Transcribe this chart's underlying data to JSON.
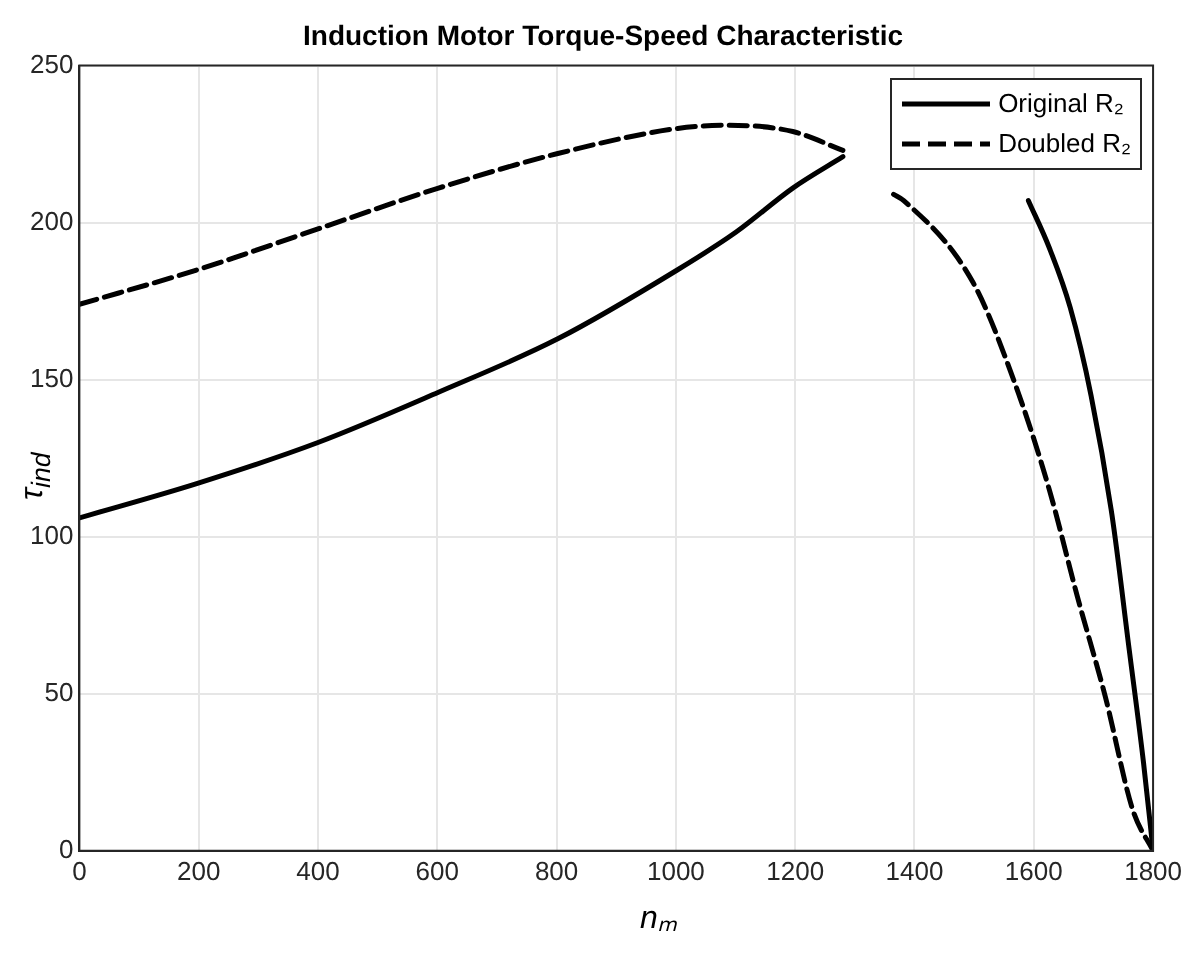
{
  "chart_data": {
    "type": "line",
    "title": "Induction Motor Torque-Speed Characteristic",
    "xlabel": "nₘ",
    "ylabel": "τ$_{ind}$",
    "xlim": [
      0,
      1800
    ],
    "xticks": [
      0,
      200,
      400,
      600,
      800,
      1000,
      1200,
      1400,
      1600,
      1800
    ],
    "ylim": [
      0,
      250
    ],
    "yticks": [
      0,
      50,
      100,
      150,
      200,
      250
    ],
    "grid": true,
    "legend": "top right",
    "marker": "none",
    "series": [
      {
        "name": "Original R₂",
        "color": "#000000",
        "line_style": "solid",
        "x": [
          0,
          198,
          400,
          602,
          802,
          1003,
          1101,
          1196,
          1280,
          1320,
          1591,
          1626,
          1661,
          1696,
          1731,
          1760,
          1784,
          1800
        ],
        "values": [
          106,
          117,
          130,
          146,
          163,
          185,
          197,
          211,
          221,
          null,
          207,
          192,
          173,
          145,
          107,
          64,
          28,
          0
        ]
      },
      {
        "name": "Doubled R₂",
        "color": "#000000",
        "line_style": "dashed",
        "x": [
          0,
          198,
          400,
          602,
          802,
          1003,
          1089,
          1196,
          1280,
          1320,
          1365,
          1382,
          1498,
          1568,
          1626,
          1673,
          1720,
          1766,
          1800
        ],
        "values": [
          174,
          185,
          198,
          211,
          222,
          230,
          231,
          229,
          223,
          null,
          209,
          207,
          181,
          149,
          115,
          81,
          49,
          13,
          0
        ]
      }
    ]
  }
}
